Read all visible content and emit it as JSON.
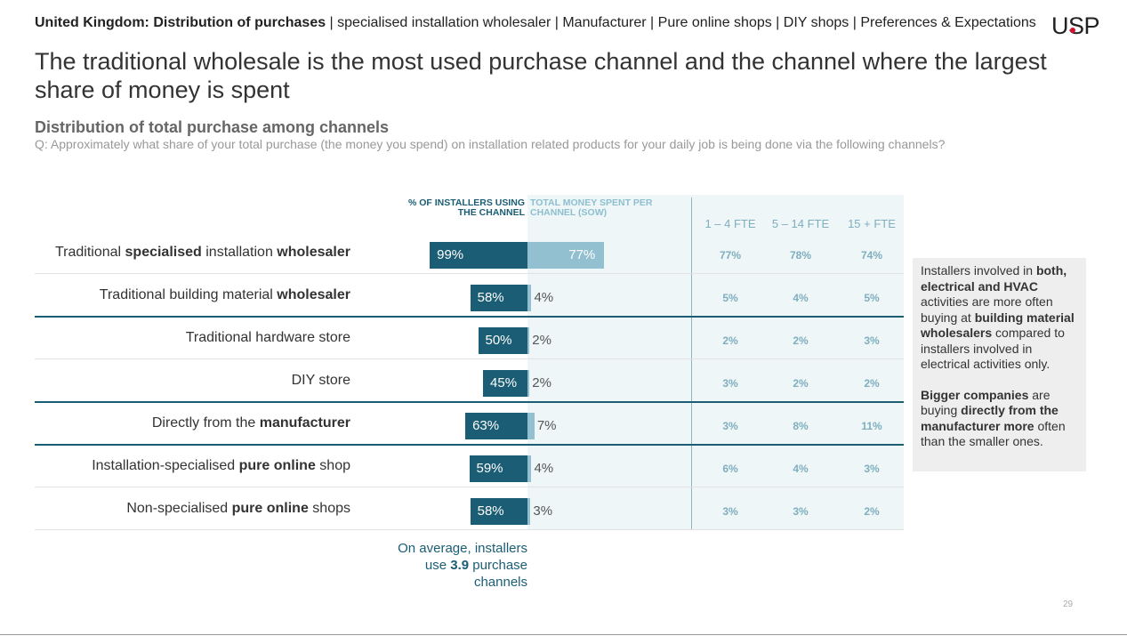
{
  "header": {
    "breadcrumb_bold": "United Kingdom: Distribution of purchases",
    "breadcrumb_rest": " | specialised installation wholesaler | Manufacturer | Pure online shops | DIY shops | Preferences & Expectations",
    "logo": "USP",
    "logo_dot_color": "#d6102a"
  },
  "title": "The traditional wholesale is the most used purchase channel and the channel where the largest share of money is spent",
  "section_title": "Distribution of total purchase among channels",
  "question": "Q: Approximately what share of your total purchase (the money you spend) on installation related products for your daily job is being done via the following channels?",
  "columns": {
    "using": "% OF INSTALLERS USING THE CHANNEL",
    "sow": "TOTAL MONEY SPENT PER CHANNEL (SOW)",
    "fte": [
      "1 – 4 FTE",
      "5 – 14 FTE",
      "15 + FTE"
    ]
  },
  "chart_data": {
    "type": "bar",
    "categories": [
      "Traditional specialised installation wholesaler",
      "Traditional building material wholesaler",
      "Traditional hardware store",
      "DIY store",
      "Directly from the manufacturer",
      "Installation-specialised pure online shop",
      "Non-specialised pure online shops"
    ],
    "series": [
      {
        "name": "% OF INSTALLERS USING THE CHANNEL",
        "values": [
          99,
          58,
          50,
          45,
          63,
          59,
          58
        ],
        "color": "#1a5d74"
      },
      {
        "name": "TOTAL MONEY SPENT PER CHANNEL (SOW)",
        "values": [
          77,
          4,
          2,
          2,
          7,
          4,
          3
        ],
        "color": "#92c0d1"
      },
      {
        "name": "1 – 4 FTE",
        "values": [
          77,
          5,
          2,
          3,
          3,
          6,
          3
        ]
      },
      {
        "name": "5 – 14 FTE",
        "values": [
          78,
          4,
          2,
          2,
          8,
          4,
          3
        ]
      },
      {
        "name": "15 + FTE",
        "values": [
          74,
          5,
          3,
          2,
          11,
          3,
          2
        ]
      }
    ],
    "xlim": [
      0,
      100
    ]
  },
  "rows": [
    {
      "pre": "Traditional ",
      "b1": "specialised",
      "mid": " installation ",
      "b2": "wholesaler",
      "post": "",
      "use": "99%",
      "sow": "77%",
      "f1": "77%",
      "f2": "78%",
      "f3": "74%"
    },
    {
      "pre": "Traditional building material ",
      "b1": "wholesaler",
      "mid": "",
      "b2": "",
      "post": "",
      "use": "58%",
      "sow": "4%",
      "f1": "5%",
      "f2": "4%",
      "f3": "5%"
    },
    {
      "pre": "Traditional hardware store",
      "b1": "",
      "mid": "",
      "b2": "",
      "post": "",
      "use": "50%",
      "sow": "2%",
      "f1": "2%",
      "f2": "2%",
      "f3": "3%"
    },
    {
      "pre": "DIY store",
      "b1": "",
      "mid": "",
      "b2": "",
      "post": "",
      "use": "45%",
      "sow": "2%",
      "f1": "3%",
      "f2": "2%",
      "f3": "2%"
    },
    {
      "pre": "Directly from the ",
      "b1": "manufacturer",
      "mid": "",
      "b2": "",
      "post": "",
      "use": "63%",
      "sow": "7%",
      "f1": "3%",
      "f2": "8%",
      "f3": "11%"
    },
    {
      "pre": "Installation-specialised ",
      "b1": "pure online",
      "mid": " shop",
      "b2": "",
      "post": "",
      "use": "59%",
      "sow": "4%",
      "f1": "6%",
      "f2": "4%",
      "f3": "3%"
    },
    {
      "pre": "Non-specialised ",
      "b1": "pure online",
      "mid": " shops",
      "b2": "",
      "post": "",
      "use": "58%",
      "sow": "3%",
      "f1": "3%",
      "f2": "3%",
      "f3": "2%"
    }
  ],
  "note": {
    "p1": [
      "Installers involved in ",
      "both, electrical and HVAC",
      " activities are more often buying at ",
      "building material wholesalers",
      " compared to installers involved in electrical activities only."
    ],
    "p2": [
      "Bigger companies",
      " are buying ",
      "directly from the manufacturer more",
      " often than the smaller ones."
    ]
  },
  "average": {
    "pre": "On average, installers use ",
    "value": "3.9",
    "post": " purchase channels"
  },
  "page_number": "29"
}
